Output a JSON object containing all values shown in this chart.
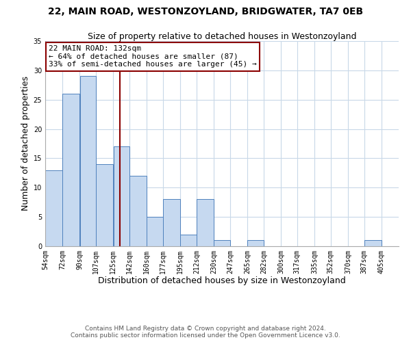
{
  "title": "22, MAIN ROAD, WESTONZOYLAND, BRIDGWATER, TA7 0EB",
  "subtitle": "Size of property relative to detached houses in Westonzoyland",
  "xlabel": "Distribution of detached houses by size in Westonzoyland",
  "ylabel": "Number of detached properties",
  "footer_line1": "Contains HM Land Registry data © Crown copyright and database right 2024.",
  "footer_line2": "Contains public sector information licensed under the Open Government Licence v3.0.",
  "annotation_title": "22 MAIN ROAD: 132sqm",
  "annotation_line2": "← 64% of detached houses are smaller (87)",
  "annotation_line3": "33% of semi-detached houses are larger (45) →",
  "property_size": 132,
  "bar_left_edges": [
    54,
    72,
    90,
    107,
    125,
    142,
    160,
    177,
    195,
    212,
    230,
    247,
    265,
    282,
    300,
    317,
    335,
    352,
    370,
    387
  ],
  "bar_widths": [
    18,
    18,
    17,
    18,
    17,
    18,
    17,
    18,
    17,
    18,
    17,
    18,
    17,
    18,
    17,
    18,
    17,
    18,
    17,
    18
  ],
  "bar_heights": [
    13,
    26,
    29,
    14,
    17,
    12,
    5,
    8,
    2,
    8,
    1,
    0,
    1,
    0,
    0,
    0,
    0,
    0,
    0,
    1
  ],
  "bar_color": "#c6d9f0",
  "bar_edge_color": "#4f81bd",
  "vline_x": 132,
  "vline_color": "#8b0000",
  "vline_linewidth": 1.5,
  "annotation_box_color": "#8b0000",
  "annotation_box_fill": "#ffffff",
  "ylim": [
    0,
    35
  ],
  "yticks": [
    0,
    5,
    10,
    15,
    20,
    25,
    30,
    35
  ],
  "xlim": [
    54,
    423
  ],
  "xtick_labels": [
    "54sqm",
    "72sqm",
    "90sqm",
    "107sqm",
    "125sqm",
    "142sqm",
    "160sqm",
    "177sqm",
    "195sqm",
    "212sqm",
    "230sqm",
    "247sqm",
    "265sqm",
    "282sqm",
    "300sqm",
    "317sqm",
    "335sqm",
    "352sqm",
    "370sqm",
    "387sqm",
    "405sqm"
  ],
  "xtick_positions": [
    54,
    72,
    90,
    107,
    125,
    142,
    160,
    177,
    195,
    212,
    230,
    247,
    265,
    282,
    300,
    317,
    335,
    352,
    370,
    387,
    405
  ],
  "background_color": "#ffffff",
  "grid_color": "#c8d8e8",
  "title_fontsize": 10,
  "subtitle_fontsize": 9,
  "xlabel_fontsize": 9,
  "ylabel_fontsize": 9,
  "annotation_fontsize": 8,
  "tick_fontsize": 7,
  "footer_fontsize": 6.5
}
